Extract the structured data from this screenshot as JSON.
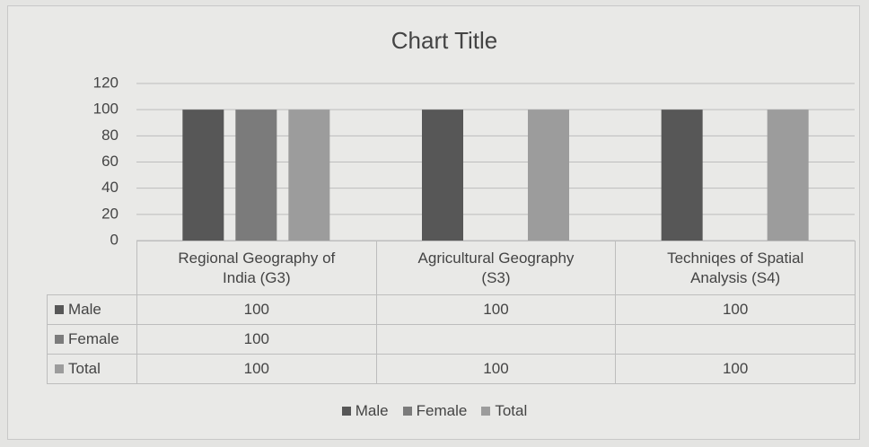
{
  "chart_data": {
    "type": "bar",
    "title": "Chart Title",
    "categories": [
      "Regional Geography of India (G3)",
      "Agricultural Geography (S3)",
      "Techniqes  of Spatial Analysis (S4)"
    ],
    "series": [
      {
        "name": "Male",
        "color": "#575757",
        "values": [
          100,
          100,
          100
        ]
      },
      {
        "name": "Female",
        "color": "#7b7b7b",
        "values": [
          100,
          null,
          null
        ]
      },
      {
        "name": "Total",
        "color": "#9c9c9c",
        "values": [
          100,
          100,
          100
        ]
      }
    ],
    "ylim": [
      0,
      120
    ],
    "yticks": [
      0,
      20,
      40,
      60,
      80,
      100,
      120
    ],
    "grid": true
  }
}
